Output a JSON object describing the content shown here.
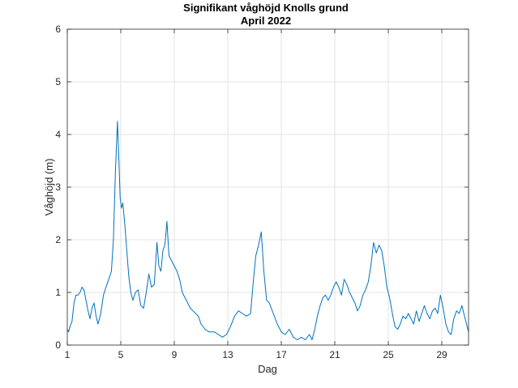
{
  "chart_data": {
    "type": "line",
    "title": "Signifikant våghöjd Knolls grund",
    "subtitle": "April 2022",
    "xlabel": "Dag",
    "ylabel": "Våghöjd (m)",
    "xlim": [
      1,
      31
    ],
    "ylim": [
      0,
      6
    ],
    "xticks": [
      1,
      5,
      9,
      13,
      17,
      21,
      25,
      29
    ],
    "yticks": [
      0,
      1,
      2,
      3,
      4,
      5,
      6
    ],
    "grid": true,
    "series": [
      {
        "color": "#0072bd",
        "points": [
          [
            1.0,
            0.3
          ],
          [
            1.1,
            0.25
          ],
          [
            1.2,
            0.35
          ],
          [
            1.35,
            0.45
          ],
          [
            1.5,
            0.8
          ],
          [
            1.65,
            0.95
          ],
          [
            1.8,
            0.95
          ],
          [
            1.95,
            1.0
          ],
          [
            2.1,
            1.1
          ],
          [
            2.25,
            1.05
          ],
          [
            2.4,
            0.85
          ],
          [
            2.55,
            0.65
          ],
          [
            2.7,
            0.5
          ],
          [
            2.85,
            0.7
          ],
          [
            3.0,
            0.8
          ],
          [
            3.15,
            0.55
          ],
          [
            3.3,
            0.4
          ],
          [
            3.5,
            0.6
          ],
          [
            3.7,
            0.95
          ],
          [
            3.9,
            1.1
          ],
          [
            4.1,
            1.25
          ],
          [
            4.3,
            1.4
          ],
          [
            4.45,
            2.0
          ],
          [
            4.6,
            3.3
          ],
          [
            4.75,
            4.25
          ],
          [
            4.85,
            3.6
          ],
          [
            4.95,
            2.8
          ],
          [
            5.05,
            2.6
          ],
          [
            5.15,
            2.7
          ],
          [
            5.3,
            2.3
          ],
          [
            5.45,
            1.8
          ],
          [
            5.6,
            1.3
          ],
          [
            5.75,
            1.0
          ],
          [
            5.9,
            0.85
          ],
          [
            6.1,
            1.0
          ],
          [
            6.3,
            1.05
          ],
          [
            6.5,
            0.75
          ],
          [
            6.7,
            0.7
          ],
          [
            6.9,
            1.0
          ],
          [
            7.1,
            1.35
          ],
          [
            7.3,
            1.1
          ],
          [
            7.5,
            1.15
          ],
          [
            7.7,
            1.95
          ],
          [
            7.85,
            1.5
          ],
          [
            8.0,
            1.4
          ],
          [
            8.15,
            1.8
          ],
          [
            8.3,
            1.9
          ],
          [
            8.45,
            2.35
          ],
          [
            8.6,
            1.7
          ],
          [
            8.8,
            1.6
          ],
          [
            9.0,
            1.5
          ],
          [
            9.2,
            1.4
          ],
          [
            9.4,
            1.25
          ],
          [
            9.6,
            1.0
          ],
          [
            9.8,
            0.9
          ],
          [
            10.0,
            0.8
          ],
          [
            10.2,
            0.7
          ],
          [
            10.4,
            0.65
          ],
          [
            10.6,
            0.6
          ],
          [
            10.8,
            0.55
          ],
          [
            11.0,
            0.4
          ],
          [
            11.3,
            0.3
          ],
          [
            11.6,
            0.25
          ],
          [
            12.0,
            0.25
          ],
          [
            12.3,
            0.2
          ],
          [
            12.6,
            0.15
          ],
          [
            12.9,
            0.2
          ],
          [
            13.2,
            0.35
          ],
          [
            13.5,
            0.55
          ],
          [
            13.8,
            0.65
          ],
          [
            14.1,
            0.6
          ],
          [
            14.4,
            0.55
          ],
          [
            14.7,
            0.6
          ],
          [
            14.9,
            1.2
          ],
          [
            15.1,
            1.7
          ],
          [
            15.3,
            1.9
          ],
          [
            15.5,
            2.15
          ],
          [
            15.7,
            1.4
          ],
          [
            15.9,
            0.85
          ],
          [
            16.1,
            0.8
          ],
          [
            16.4,
            0.6
          ],
          [
            16.7,
            0.4
          ],
          [
            17.0,
            0.25
          ],
          [
            17.3,
            0.2
          ],
          [
            17.6,
            0.3
          ],
          [
            17.9,
            0.15
          ],
          [
            18.2,
            0.1
          ],
          [
            18.5,
            0.15
          ],
          [
            18.8,
            0.1
          ],
          [
            19.1,
            0.2
          ],
          [
            19.3,
            0.1
          ],
          [
            19.5,
            0.3
          ],
          [
            19.7,
            0.55
          ],
          [
            19.9,
            0.75
          ],
          [
            20.1,
            0.9
          ],
          [
            20.3,
            0.95
          ],
          [
            20.5,
            0.85
          ],
          [
            20.7,
            0.95
          ],
          [
            20.9,
            1.1
          ],
          [
            21.1,
            1.2
          ],
          [
            21.3,
            1.1
          ],
          [
            21.5,
            0.95
          ],
          [
            21.7,
            1.25
          ],
          [
            21.9,
            1.15
          ],
          [
            22.1,
            1.0
          ],
          [
            22.3,
            0.9
          ],
          [
            22.5,
            0.8
          ],
          [
            22.7,
            0.65
          ],
          [
            22.9,
            0.75
          ],
          [
            23.1,
            0.95
          ],
          [
            23.3,
            1.05
          ],
          [
            23.5,
            1.2
          ],
          [
            23.7,
            1.5
          ],
          [
            23.9,
            1.95
          ],
          [
            24.1,
            1.75
          ],
          [
            24.3,
            1.9
          ],
          [
            24.5,
            1.8
          ],
          [
            24.7,
            1.5
          ],
          [
            24.9,
            1.1
          ],
          [
            25.1,
            0.9
          ],
          [
            25.3,
            0.6
          ],
          [
            25.5,
            0.35
          ],
          [
            25.7,
            0.3
          ],
          [
            25.9,
            0.4
          ],
          [
            26.1,
            0.55
          ],
          [
            26.3,
            0.5
          ],
          [
            26.5,
            0.6
          ],
          [
            26.7,
            0.5
          ],
          [
            26.9,
            0.4
          ],
          [
            27.1,
            0.65
          ],
          [
            27.3,
            0.45
          ],
          [
            27.5,
            0.6
          ],
          [
            27.7,
            0.75
          ],
          [
            27.9,
            0.6
          ],
          [
            28.1,
            0.5
          ],
          [
            28.3,
            0.65
          ],
          [
            28.5,
            0.7
          ],
          [
            28.7,
            0.6
          ],
          [
            28.9,
            0.95
          ],
          [
            29.1,
            0.7
          ],
          [
            29.3,
            0.4
          ],
          [
            29.5,
            0.25
          ],
          [
            29.7,
            0.2
          ],
          [
            29.9,
            0.5
          ],
          [
            30.1,
            0.65
          ],
          [
            30.3,
            0.6
          ],
          [
            30.5,
            0.75
          ],
          [
            30.7,
            0.55
          ],
          [
            30.9,
            0.35
          ],
          [
            31.0,
            0.25
          ]
        ]
      }
    ]
  }
}
